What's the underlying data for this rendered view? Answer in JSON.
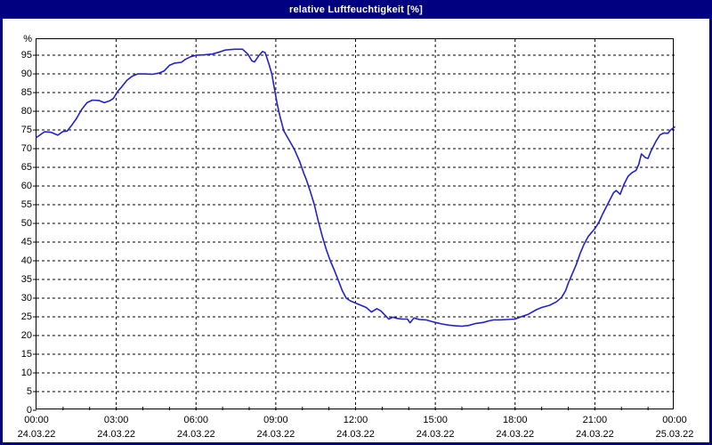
{
  "window": {
    "title": "relative Luftfeuchtigkeit [%]"
  },
  "colors": {
    "titlebar_bg": "#000080",
    "titlebar_text": "#ffffff",
    "outer_border": "#000080",
    "plot_bg": "#ffffff",
    "plot_frame": "#000000",
    "grid": "#000000",
    "axis_text": "#000000",
    "curve": "#2222cc"
  },
  "chart_data": {
    "type": "line",
    "title": "relative Luftfeuchtigkeit [%]",
    "unit_label": "%",
    "xlabel": "",
    "ylabel": "%",
    "ylim": [
      0,
      99.3
    ],
    "xlim_hours": [
      0,
      24
    ],
    "grid": "dashed",
    "legend_position": "none",
    "y_ticks": [
      0,
      5,
      10,
      15,
      20,
      25,
      30,
      35,
      40,
      45,
      50,
      55,
      60,
      65,
      70,
      75,
      80,
      85,
      90,
      95
    ],
    "x_ticks": [
      {
        "hour": 0,
        "time": "00:00",
        "date": "24.03.22"
      },
      {
        "hour": 3,
        "time": "03:00",
        "date": "24.03.22"
      },
      {
        "hour": 6,
        "time": "06:00",
        "date": "24.03.22"
      },
      {
        "hour": 9,
        "time": "09:00",
        "date": "24.03.22"
      },
      {
        "hour": 12,
        "time": "12:00",
        "date": "24.03.22"
      },
      {
        "hour": 15,
        "time": "15:00",
        "date": "24.03.22"
      },
      {
        "hour": 18,
        "time": "18:00",
        "date": "24.03.22"
      },
      {
        "hour": 21,
        "time": "21:00",
        "date": "24.03.22"
      },
      {
        "hour": 24,
        "time": "00:00",
        "date": "25.03.22"
      }
    ],
    "minor_x_tick_every_hours": 1,
    "series": [
      {
        "name": "relative Luftfeuchtigkeit",
        "color": "#2222cc",
        "points": [
          [
            0.0,
            73.0
          ],
          [
            0.3,
            74.5
          ],
          [
            0.55,
            74.4
          ],
          [
            0.8,
            73.6
          ],
          [
            1.0,
            74.6
          ],
          [
            1.15,
            74.7
          ],
          [
            1.3,
            76.0
          ],
          [
            1.5,
            78.0
          ],
          [
            1.7,
            80.5
          ],
          [
            1.9,
            82.3
          ],
          [
            2.1,
            83.0
          ],
          [
            2.35,
            82.9
          ],
          [
            2.55,
            82.3
          ],
          [
            2.75,
            82.8
          ],
          [
            2.9,
            83.5
          ],
          [
            3.05,
            85.3
          ],
          [
            3.2,
            86.5
          ],
          [
            3.4,
            88.3
          ],
          [
            3.6,
            89.4
          ],
          [
            3.8,
            90.0
          ],
          [
            4.1,
            90.0
          ],
          [
            4.35,
            89.9
          ],
          [
            4.6,
            90.2
          ],
          [
            4.8,
            90.8
          ],
          [
            5.0,
            92.3
          ],
          [
            5.2,
            92.9
          ],
          [
            5.45,
            93.1
          ],
          [
            5.6,
            93.9
          ],
          [
            5.8,
            94.6
          ],
          [
            6.0,
            95.0
          ],
          [
            6.3,
            95.1
          ],
          [
            6.6,
            95.3
          ],
          [
            6.9,
            95.9
          ],
          [
            7.1,
            96.4
          ],
          [
            7.45,
            96.6
          ],
          [
            7.75,
            96.6
          ],
          [
            7.95,
            95.3
          ],
          [
            8.1,
            93.5
          ],
          [
            8.2,
            93.2
          ],
          [
            8.35,
            94.8
          ],
          [
            8.5,
            96.0
          ],
          [
            8.6,
            95.7
          ],
          [
            8.75,
            92.5
          ],
          [
            8.85,
            90.0
          ],
          [
            8.95,
            86.0
          ],
          [
            9.05,
            82.0
          ],
          [
            9.15,
            78.8
          ],
          [
            9.3,
            74.8
          ],
          [
            9.5,
            72.3
          ],
          [
            9.7,
            69.8
          ],
          [
            9.9,
            66.5
          ],
          [
            10.05,
            63.5
          ],
          [
            10.15,
            61.7
          ],
          [
            10.3,
            58.5
          ],
          [
            10.45,
            55.0
          ],
          [
            10.6,
            50.5
          ],
          [
            10.75,
            46.5
          ],
          [
            10.9,
            43.0
          ],
          [
            11.05,
            40.0
          ],
          [
            11.2,
            37.5
          ],
          [
            11.35,
            34.8
          ],
          [
            11.5,
            32.0
          ],
          [
            11.65,
            30.0
          ],
          [
            11.8,
            29.3
          ],
          [
            12.0,
            28.7
          ],
          [
            12.2,
            28.1
          ],
          [
            12.4,
            27.5
          ],
          [
            12.6,
            26.3
          ],
          [
            12.8,
            27.2
          ],
          [
            12.95,
            26.6
          ],
          [
            13.1,
            25.5
          ],
          [
            13.25,
            24.4
          ],
          [
            13.4,
            24.9
          ],
          [
            13.55,
            24.6
          ],
          [
            13.75,
            24.4
          ],
          [
            13.95,
            24.4
          ],
          [
            14.05,
            23.4
          ],
          [
            14.2,
            24.7
          ],
          [
            14.4,
            24.3
          ],
          [
            14.65,
            24.2
          ],
          [
            14.85,
            23.8
          ],
          [
            15.05,
            23.4
          ],
          [
            15.25,
            23.1
          ],
          [
            15.5,
            22.8
          ],
          [
            15.75,
            22.6
          ],
          [
            16.0,
            22.5
          ],
          [
            16.25,
            22.7
          ],
          [
            16.5,
            23.2
          ],
          [
            16.8,
            23.5
          ],
          [
            17.0,
            23.9
          ],
          [
            17.2,
            24.2
          ],
          [
            17.45,
            24.2
          ],
          [
            17.7,
            24.3
          ],
          [
            18.0,
            24.4
          ],
          [
            18.25,
            25.1
          ],
          [
            18.5,
            25.7
          ],
          [
            18.8,
            26.9
          ],
          [
            19.0,
            27.5
          ],
          [
            19.3,
            28.1
          ],
          [
            19.55,
            29.0
          ],
          [
            19.75,
            30.2
          ],
          [
            19.9,
            32.0
          ],
          [
            20.0,
            34.0
          ],
          [
            20.15,
            36.5
          ],
          [
            20.3,
            39.0
          ],
          [
            20.45,
            42.0
          ],
          [
            20.6,
            44.5
          ],
          [
            20.75,
            46.5
          ],
          [
            21.0,
            48.6
          ],
          [
            21.15,
            50.3
          ],
          [
            21.3,
            52.6
          ],
          [
            21.5,
            55.4
          ],
          [
            21.7,
            58.2
          ],
          [
            21.8,
            58.8
          ],
          [
            21.95,
            57.8
          ],
          [
            22.1,
            60.5
          ],
          [
            22.25,
            62.6
          ],
          [
            22.4,
            63.6
          ],
          [
            22.55,
            64.2
          ],
          [
            22.65,
            65.8
          ],
          [
            22.75,
            68.6
          ],
          [
            22.9,
            67.6
          ],
          [
            23.0,
            67.4
          ],
          [
            23.1,
            69.2
          ],
          [
            23.2,
            70.6
          ],
          [
            23.3,
            72.0
          ],
          [
            23.45,
            73.7
          ],
          [
            23.6,
            74.2
          ],
          [
            23.75,
            74.1
          ],
          [
            23.85,
            75.0
          ],
          [
            24.0,
            75.8
          ]
        ]
      }
    ]
  }
}
